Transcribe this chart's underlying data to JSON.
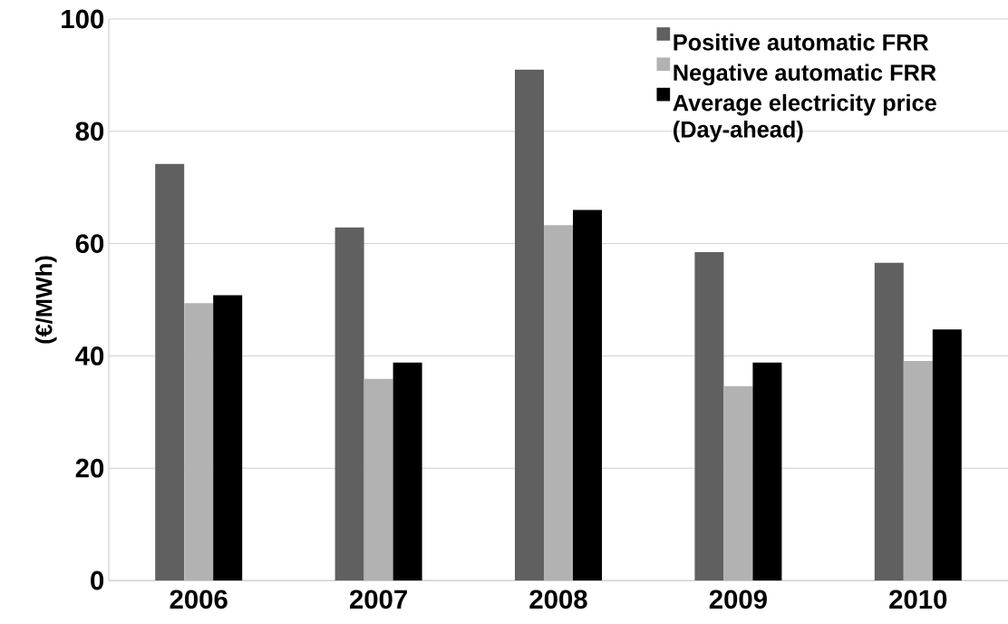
{
  "chart_data": {
    "type": "bar",
    "ylabel": "(€/MWh)",
    "categories": [
      "2006",
      "2007",
      "2008",
      "2009",
      "2010"
    ],
    "series": [
      {
        "name": "Positive automatic FRR",
        "color": "#606060",
        "values": [
          74.2,
          62.9,
          91.0,
          58.5,
          56.6
        ]
      },
      {
        "name": "Negative automatic FRR",
        "color": "#b2b2b2",
        "values": [
          49.4,
          35.9,
          63.3,
          34.6,
          39.1
        ]
      },
      {
        "name": "Average electricity price (Day-ahead)",
        "color": "#000000",
        "values": [
          50.8,
          38.8,
          66.0,
          38.8,
          44.7
        ]
      }
    ],
    "ylim": [
      0,
      100
    ],
    "yticks": [
      0,
      20,
      40,
      60,
      80,
      100
    ],
    "grid": "y",
    "legend": "top right"
  }
}
